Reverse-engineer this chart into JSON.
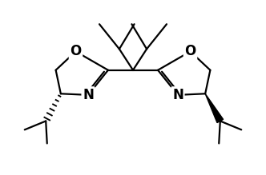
{
  "background": "#ffffff",
  "line_color": "#000000",
  "line_width": 1.6,
  "figsize": [
    3.32,
    2.19
  ],
  "dpi": 100,
  "xlim": [
    0,
    10
  ],
  "ylim": [
    0,
    7
  ]
}
